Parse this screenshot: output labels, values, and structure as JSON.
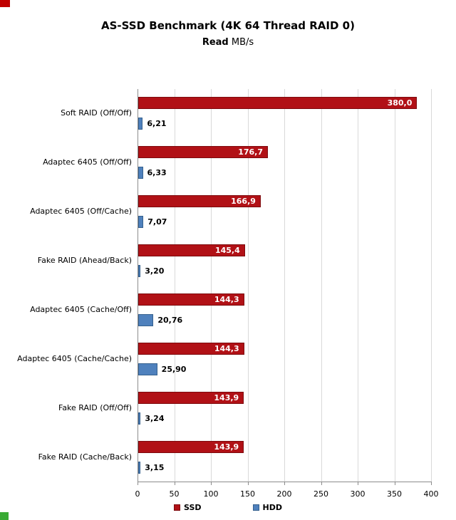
{
  "decorations": {
    "top_left_mark_color": "#c00000",
    "bottom_left_mark_color": "#3aaa35"
  },
  "chart_data": {
    "type": "bar",
    "orientation": "horizontal",
    "title": "AS-SSD Benchmark (4K 64 Thread RAID 0)",
    "subtitle": {
      "bold": "Read",
      "unit": " MB/s"
    },
    "categories": [
      "Soft RAID (Off/Off)",
      "Adaptec 6405 (Off/Off)",
      "Adaptec 6405 (Off/Cache)",
      "Fake RAID (Ahead/Back)",
      "Adaptec 6405 (Cache/Off)",
      "Adaptec 6405 (Cache/Cache)",
      "Fake RAID (Off/Off)",
      "Fake RAID (Cache/Back)"
    ],
    "series": [
      {
        "name": "SSD",
        "color": "#b11116",
        "border": "#7d0b0e",
        "values": [
          380.0,
          176.7,
          166.9,
          145.4,
          144.3,
          144.3,
          143.9,
          143.9
        ],
        "labels": [
          "380,0",
          "176,7",
          "166,9",
          "145,4",
          "144,3",
          "144,3",
          "143,9",
          "143,9"
        ],
        "label_position": "inside"
      },
      {
        "name": "HDD",
        "color": "#4f81bd",
        "border": "#36618e",
        "values": [
          6.21,
          6.33,
          7.07,
          3.2,
          20.76,
          25.9,
          3.24,
          3.15
        ],
        "labels": [
          "6,21",
          "6,33",
          "7,07",
          "3,20",
          "20,76",
          "25,90",
          "3,24",
          "3,15"
        ],
        "label_position": "outside"
      }
    ],
    "xlim": [
      0,
      400
    ],
    "xticks": [
      0,
      50,
      100,
      150,
      200,
      250,
      300,
      350,
      400
    ],
    "grid": true,
    "legend_position": "bottom"
  }
}
